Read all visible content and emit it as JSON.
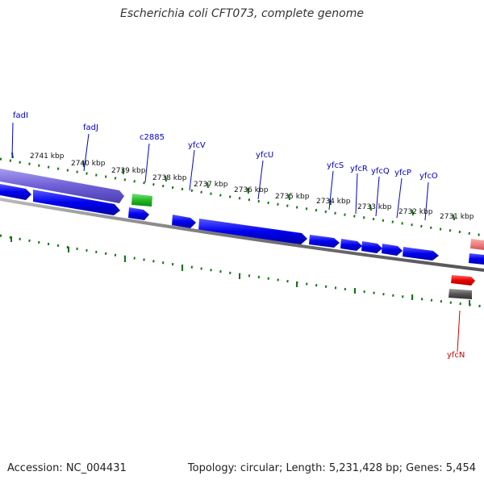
{
  "title": "Escherichia coli CFT073, complete genome",
  "footer": {
    "accession": "Accession: NC_004431",
    "summary": "Topology: circular; Length: 5,231,428 bp; Genes: 5,454"
  },
  "colors": {
    "cds": "#0000ee",
    "cds_selected": "#6e5fd6",
    "rna_green": "#22bb22",
    "gene_red": "#ee0000",
    "pink": "#ee8080",
    "gray_feature": "#555555",
    "tick": "#117711",
    "label_blue": "#0000cc",
    "label_red": "#cc0000",
    "backbone": "#777777"
  },
  "scale_labels": [
    "2741 kbp",
    "2740 kbp",
    "2739 kbp",
    "2738 kbp",
    "2737 kbp",
    "2736 kbp",
    "2735 kbp",
    "2734 kbp",
    "2733 kbp",
    "2732 kbp",
    "2731 kbp"
  ],
  "gene_labels": [
    {
      "name": "fadI",
      "color": "blue"
    },
    {
      "name": "fadJ",
      "color": "blue"
    },
    {
      "name": "c2885",
      "color": "blue"
    },
    {
      "name": "yfcV",
      "color": "blue"
    },
    {
      "name": "yfcU",
      "color": "blue"
    },
    {
      "name": "yfcS",
      "color": "blue"
    },
    {
      "name": "yfcR",
      "color": "blue"
    },
    {
      "name": "yfcQ",
      "color": "blue"
    },
    {
      "name": "yfcP",
      "color": "blue"
    },
    {
      "name": "yfcO",
      "color": "blue"
    },
    {
      "name": "yfcN",
      "color": "red"
    }
  ]
}
